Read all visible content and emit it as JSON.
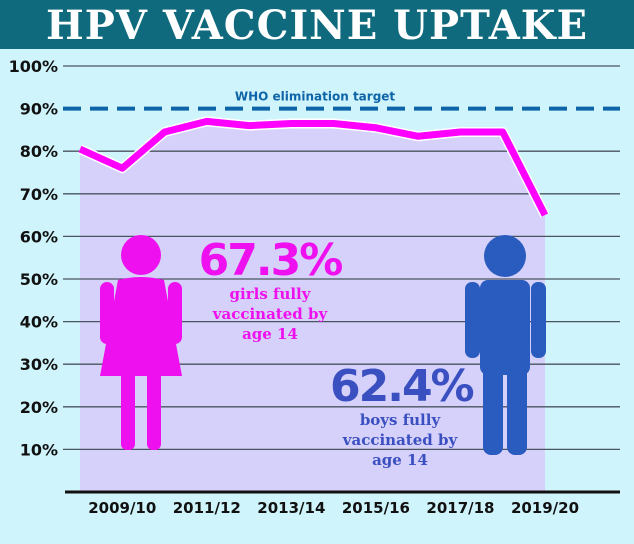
{
  "title": "HPV VACCINE UPTAKE",
  "colors": {
    "title_bar": "#0e6a7c",
    "background": "#cff4fb",
    "area": "#d5d1fa",
    "line": "#ff00ff",
    "target": "#0e64a8",
    "girls": "#ee10ee",
    "boys": "#2a5cc0",
    "boys_text": "#3a4fc0"
  },
  "chart_data": {
    "type": "line",
    "title": "HPV VACCINE UPTAKE",
    "ylim": [
      0,
      100
    ],
    "yticks": [
      "10%",
      "20%",
      "30%",
      "40%",
      "50%",
      "60%",
      "70%",
      "80%",
      "90%",
      "100%"
    ],
    "ytick_values": [
      10,
      20,
      30,
      40,
      50,
      60,
      70,
      80,
      90,
      100
    ],
    "xtick_labels": [
      "2009/10",
      "2011/12",
      "2013/14",
      "2015/16",
      "2017/18",
      "2019/20"
    ],
    "xtick_index": [
      1,
      3,
      5,
      7,
      9,
      11
    ],
    "grid": true,
    "series": [
      {
        "values": [
          80.5,
          76,
          84.5,
          87,
          86,
          86.5,
          86.5,
          85.5,
          83.5,
          84.5,
          84.5,
          65
        ]
      }
    ],
    "reference_line": {
      "value": 90,
      "label": "WHO elimination target",
      "style": "dashed"
    },
    "annotations": [
      {
        "value": "67.3%",
        "text": [
          "girls fully",
          "vaccinated by",
          "age 14"
        ]
      },
      {
        "value": "62.4%",
        "text": [
          "boys fully",
          "vaccinated by",
          "age 14"
        ]
      }
    ]
  }
}
